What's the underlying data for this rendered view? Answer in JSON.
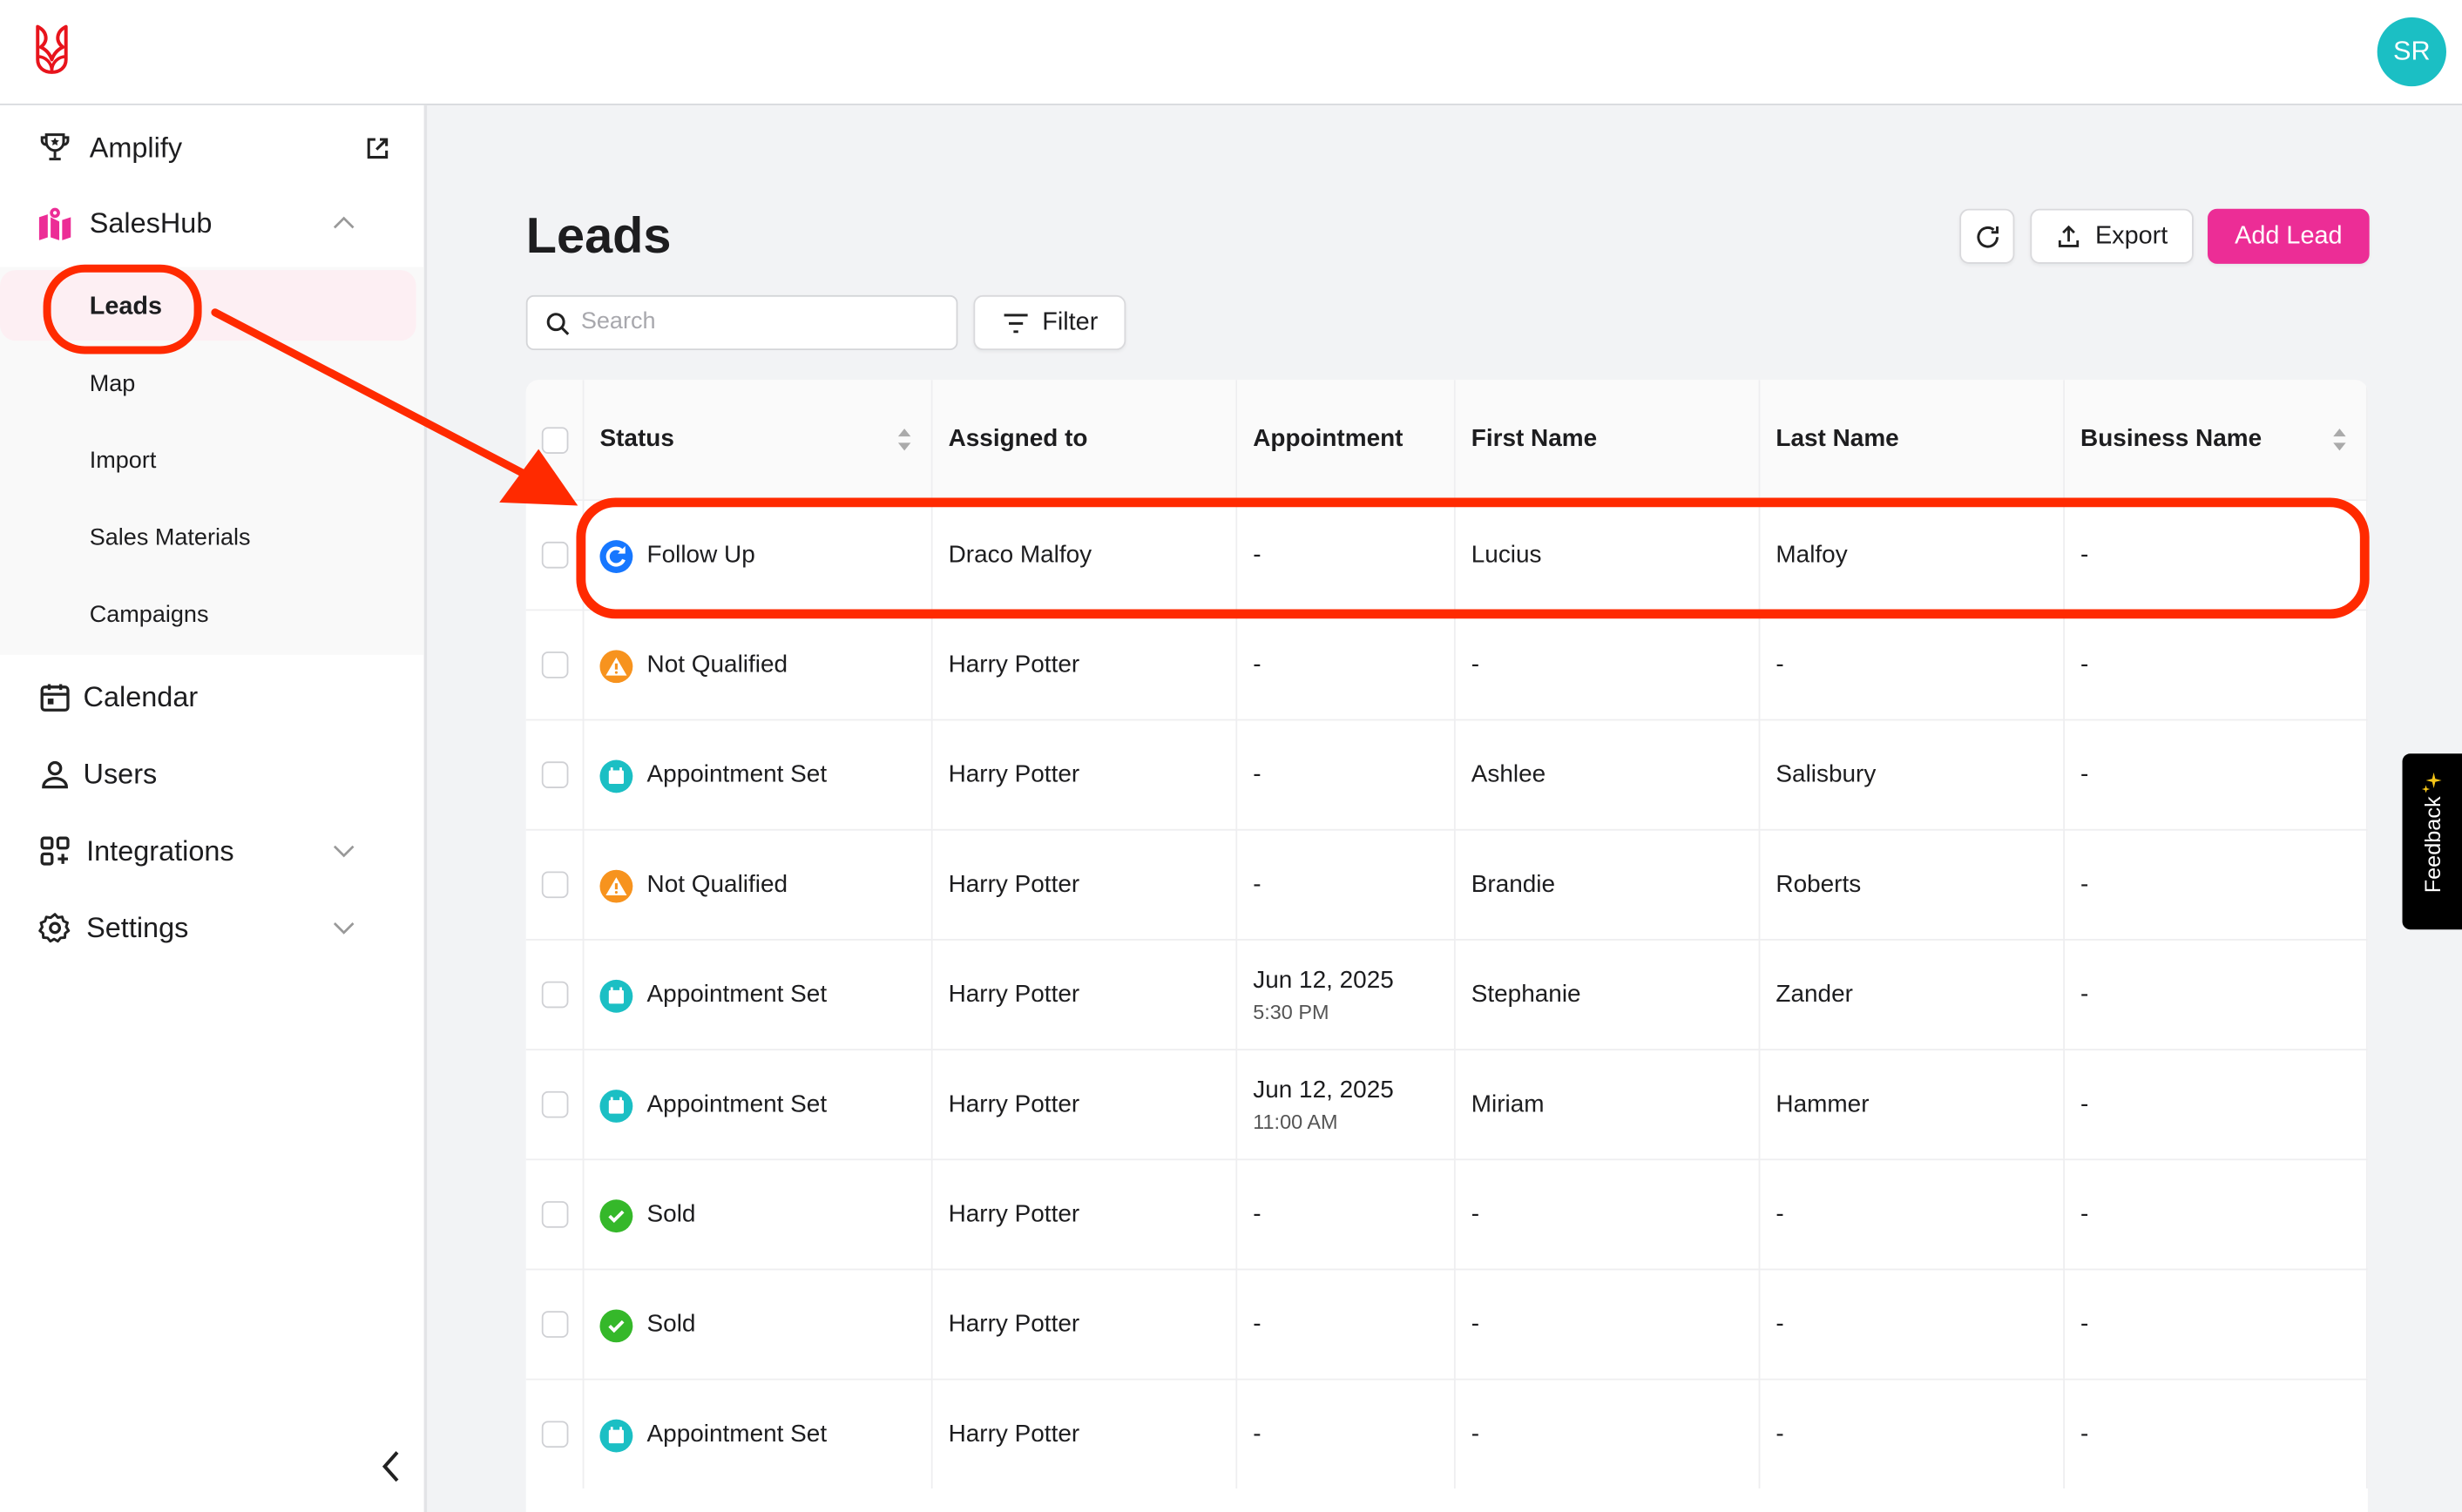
{
  "header": {
    "avatar_initials": "SR"
  },
  "colors": {
    "brand": "#e8141c",
    "accent": "#ec2d96",
    "avatar": "#1bbfc4",
    "annotation": "#ff2a00"
  },
  "sidebar": {
    "amplify": "Amplify",
    "saleshub": "SalesHub",
    "sub_items": [
      "Leads",
      "Map",
      "Import",
      "Sales Materials",
      "Campaigns"
    ],
    "calendar": "Calendar",
    "users": "Users",
    "integrations": "Integrations",
    "settings": "Settings"
  },
  "main": {
    "title": "Leads",
    "export_label": "Export",
    "add_lead_label": "Add Lead",
    "search_placeholder": "Search",
    "filter_label": "Filter",
    "feedback_label": "Feedback"
  },
  "table": {
    "columns": [
      "Status",
      "Assigned to",
      "Appointment",
      "First Name",
      "Last Name",
      "Business Name"
    ],
    "rows": [
      {
        "status": "Follow Up",
        "icon": "follow-up",
        "assigned": "Draco Malfoy",
        "appt": "-",
        "appt_time": "",
        "first": "Lucius",
        "last": "Malfoy",
        "business": "-"
      },
      {
        "status": "Not Qualified",
        "icon": "warning",
        "assigned": "Harry Potter",
        "appt": "-",
        "appt_time": "",
        "first": "-",
        "last": "-",
        "business": "-"
      },
      {
        "status": "Appointment Set",
        "icon": "calendar",
        "assigned": "Harry Potter",
        "appt": "-",
        "appt_time": "",
        "first": "Ashlee",
        "last": "Salisbury",
        "business": "-"
      },
      {
        "status": "Not Qualified",
        "icon": "warning",
        "assigned": "Harry Potter",
        "appt": "-",
        "appt_time": "",
        "first": "Brandie",
        "last": "Roberts",
        "business": "-"
      },
      {
        "status": "Appointment Set",
        "icon": "calendar",
        "assigned": "Harry Potter",
        "appt": "Jun 12, 2025",
        "appt_time": "5:30 PM",
        "first": "Stephanie",
        "last": "Zander",
        "business": "-"
      },
      {
        "status": "Appointment Set",
        "icon": "calendar",
        "assigned": "Harry Potter",
        "appt": "Jun 12, 2025",
        "appt_time": "11:00 AM",
        "first": "Miriam",
        "last": "Hammer",
        "business": "-"
      },
      {
        "status": "Sold",
        "icon": "check",
        "assigned": "Harry Potter",
        "appt": "-",
        "appt_time": "",
        "first": "-",
        "last": "-",
        "business": "-"
      },
      {
        "status": "Sold",
        "icon": "check",
        "assigned": "Harry Potter",
        "appt": "-",
        "appt_time": "",
        "first": "-",
        "last": "-",
        "business": "-"
      },
      {
        "status": "Appointment Set",
        "icon": "calendar",
        "assigned": "Harry Potter",
        "appt": "-",
        "appt_time": "",
        "first": "-",
        "last": "-",
        "business": "-"
      }
    ]
  }
}
